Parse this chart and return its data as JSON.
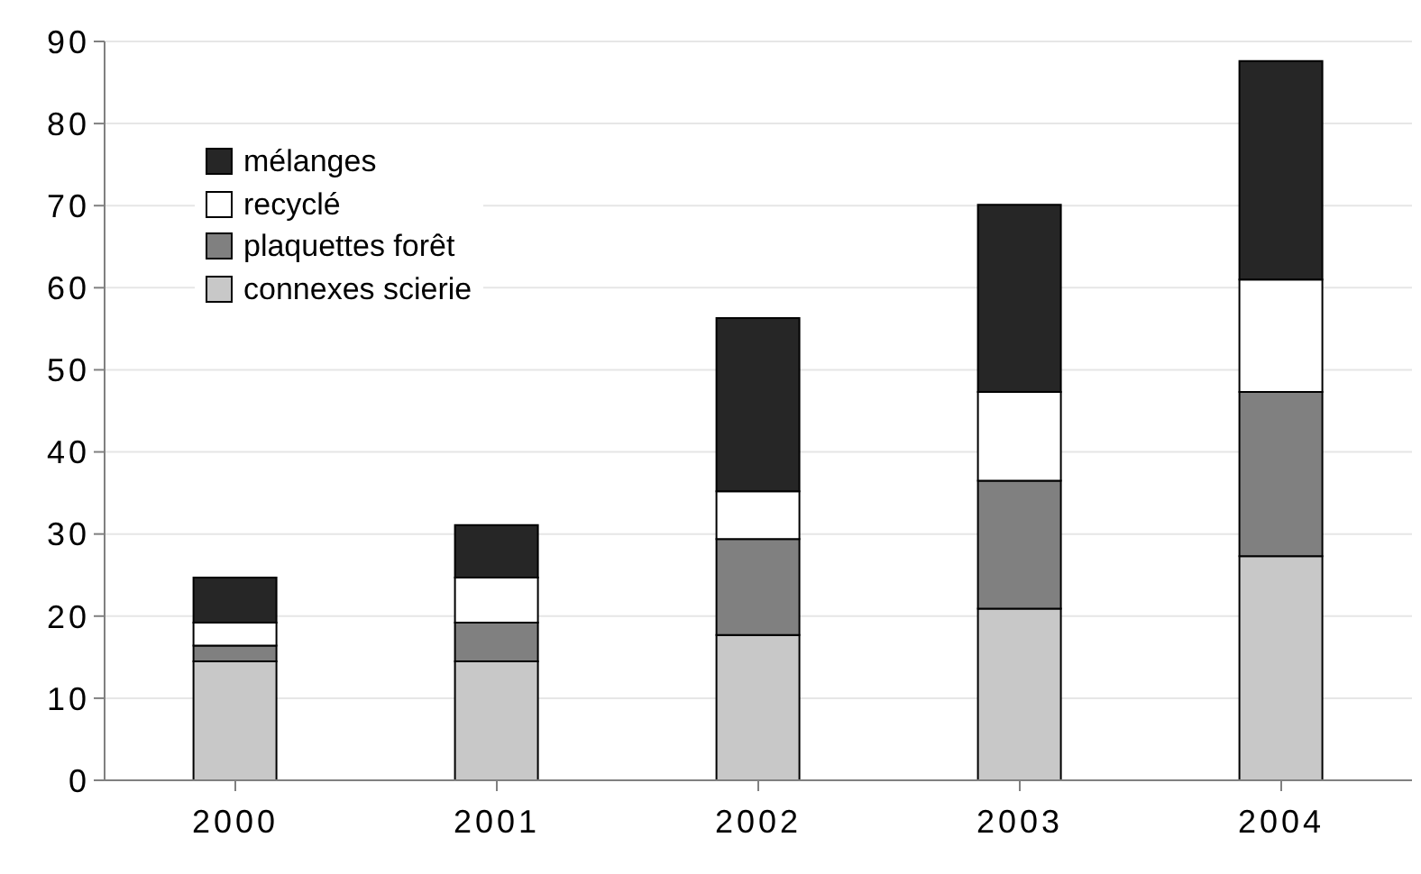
{
  "chart_data": {
    "type": "bar",
    "stacked": true,
    "categories": [
      "2000",
      "2001",
      "2002",
      "2003",
      "2004"
    ],
    "series": [
      {
        "name": "connexes scierie",
        "color": "#c8c8c8",
        "values": [
          14.5,
          14.5,
          17.7,
          20.9,
          27.3
        ]
      },
      {
        "name": "plaquettes  forêt",
        "color": "#808080",
        "values": [
          1.9,
          4.7,
          11.7,
          15.6,
          20.0
        ]
      },
      {
        "name": "recyclé",
        "color": "#ffffff",
        "values": [
          2.8,
          5.5,
          5.8,
          10.8,
          13.7
        ]
      },
      {
        "name": "mélanges",
        "color": "#262626",
        "values": [
          5.5,
          6.4,
          21.1,
          22.8,
          26.6
        ]
      }
    ],
    "ylim": [
      0,
      90
    ],
    "yticks": [
      0,
      10,
      20,
      30,
      40,
      50,
      60,
      70,
      80,
      90
    ],
    "grid": "y",
    "legend": "top left"
  }
}
